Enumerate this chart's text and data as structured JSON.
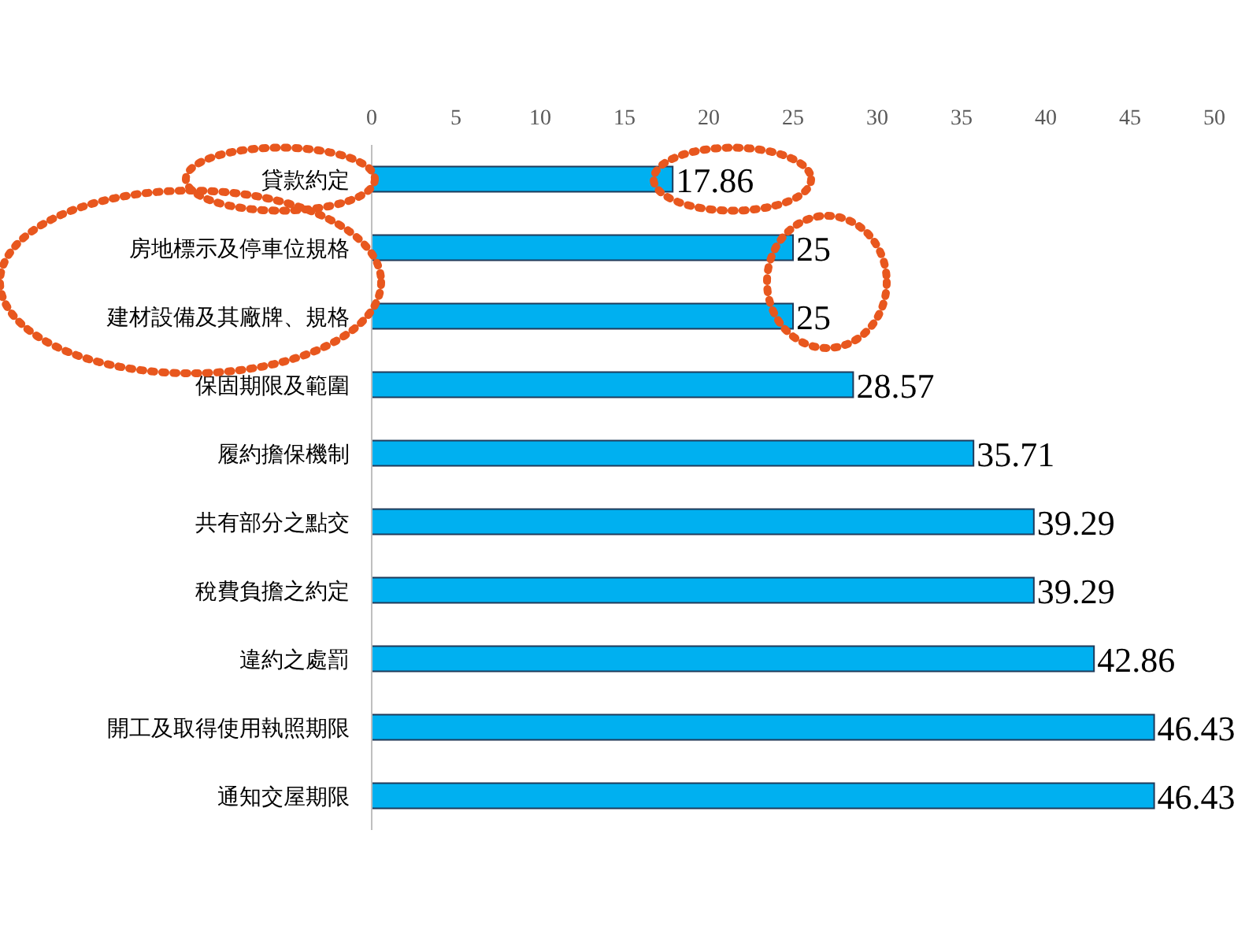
{
  "chart_data": {
    "type": "bar",
    "orientation": "horizontal",
    "categories": [
      "貸款約定",
      "房地標示及停車位規格",
      "建材設備及其廠牌、規格",
      "保固期限及範圍",
      "履約擔保機制",
      "共有部分之點交",
      "稅費負擔之約定",
      "違約之處罰",
      "開工及取得使用執照期限",
      "通知交屋期限"
    ],
    "values": [
      17.86,
      25,
      25,
      28.57,
      35.71,
      39.29,
      39.29,
      42.86,
      46.43,
      46.43
    ],
    "color": "#00b0f0",
    "xlim": [
      0,
      50
    ],
    "xticks": [
      0,
      5,
      10,
      15,
      20,
      25,
      30,
      35,
      40,
      45,
      50
    ],
    "grid": false,
    "data_labels": true
  }
}
